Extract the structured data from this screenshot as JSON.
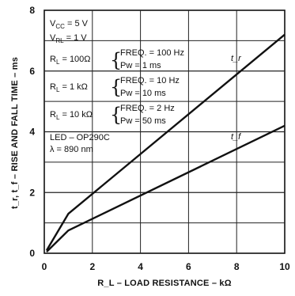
{
  "chart_data": {
    "type": "line",
    "xlabel": "R_L – LOAD RESISTANCE – kΩ",
    "ylabel": "t_r, t_f – RISE AND FALL TIME – ms",
    "xlim": [
      0,
      10
    ],
    "ylim": [
      0,
      8
    ],
    "x_ticks": [
      "0",
      "2",
      "4",
      "6",
      "8",
      "10"
    ],
    "y_ticks": [
      "0",
      "2",
      "4",
      "6",
      "8"
    ],
    "grid": true,
    "series": [
      {
        "name": "t_r",
        "x": [
          0.1,
          1,
          10
        ],
        "y": [
          0.1,
          1.3,
          7.2
        ]
      },
      {
        "name": "t_f",
        "x": [
          0.1,
          1,
          10
        ],
        "y": [
          0.05,
          0.75,
          4.2
        ]
      }
    ],
    "annotations": {
      "vcc": {
        "main": "V",
        "sub": "CC",
        "rest": " = 5 V"
      },
      "vrl": {
        "main": "V",
        "sub": "RL",
        "rest": " = 1 V"
      },
      "cond": [
        {
          "r_main": "R",
          "r_sub": "L",
          "r_rest": " = 100Ω",
          "freq": "FREQ. = 100 Hz",
          "pw": "Pw = 1 ms"
        },
        {
          "r_main": "R",
          "r_sub": "L",
          "r_rest": " = 1 kΩ",
          "freq": "FREQ. = 10 Hz",
          "pw": "Pw = 10 ms"
        },
        {
          "r_main": "R",
          "r_sub": "L",
          "r_rest": " = 10 kΩ",
          "freq": "FREQ. = 2 Hz",
          "pw": "Pw = 50 ms"
        }
      ],
      "led": "LED – OP290C",
      "wavelength": "λ = 890 nm"
    }
  }
}
